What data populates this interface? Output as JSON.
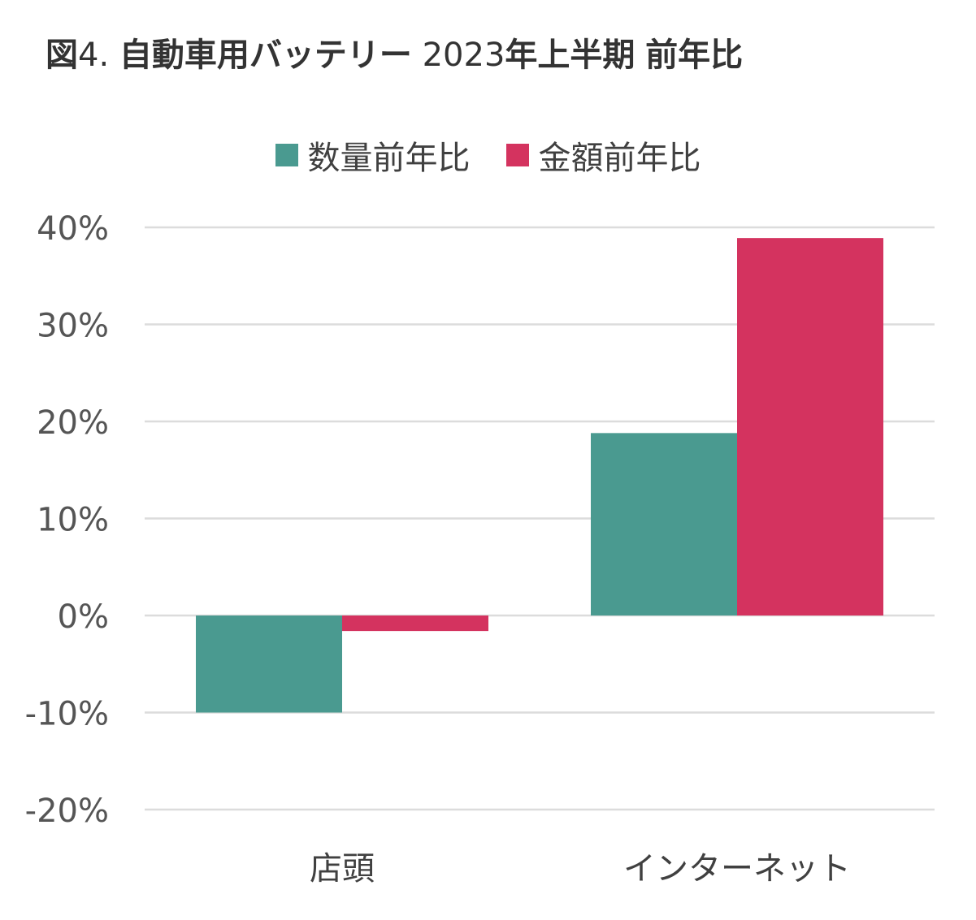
{
  "title": {
    "prefix": "図",
    "number": "4.",
    "main": "自動車用バッテリー",
    "year": "2023",
    "period": "年上半期",
    "suffix": "前年比"
  },
  "colors": {
    "quantity": "#4a9a90",
    "amount": "#d4335f",
    "grid": "#dcdcdc",
    "text": "#404040"
  },
  "chart_data": {
    "type": "bar",
    "categories": [
      "店頭",
      "インターネット"
    ],
    "series": [
      {
        "name": "数量前年比",
        "values": [
          -10,
          18.8
        ]
      },
      {
        "name": "金額前年比",
        "values": [
          -1.6,
          38.9
        ]
      }
    ],
    "ylim": [
      -20,
      40
    ],
    "yticks": [
      40,
      30,
      20,
      10,
      0,
      -10,
      -20
    ],
    "ytick_labels": [
      "40%",
      "30%",
      "20%",
      "10%",
      "0%",
      "-10%",
      "-20%"
    ],
    "grid": true,
    "legend": "top-center"
  }
}
